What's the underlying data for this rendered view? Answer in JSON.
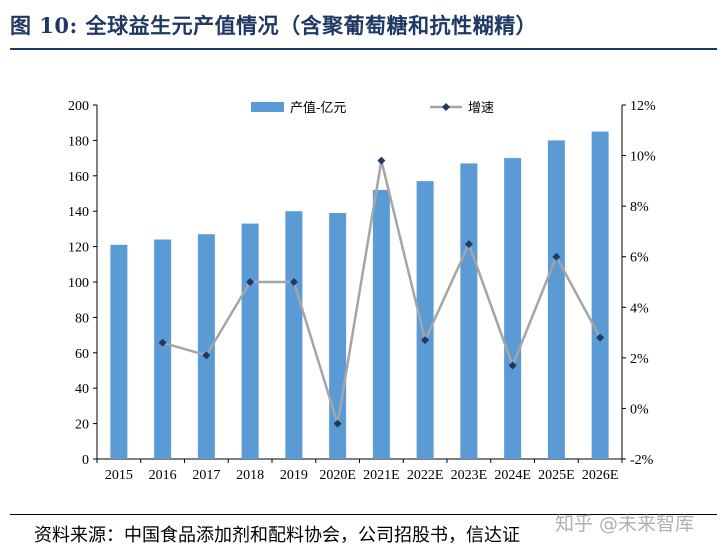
{
  "title": "图 10: 全球益生元产值情况（含聚葡萄糖和抗性糊精）",
  "source": "资料来源：中国食品添加剂和配料协会，公司招股书，信达证",
  "watermark": "知乎 @未来智库",
  "colors": {
    "bar": "#5b9bd5",
    "line": "#a5a5a5",
    "marker": "#1f3864",
    "title": "#1f3864"
  },
  "chart_data": {
    "type": "bar",
    "categories": [
      "2015",
      "2016",
      "2017",
      "2018",
      "2019",
      "2020E",
      "2021E",
      "2022E",
      "2023E",
      "2024E",
      "2025E",
      "2026E"
    ],
    "series": [
      {
        "name": "产值-亿元",
        "type": "bar",
        "axis": "left",
        "values": [
          121,
          124,
          127,
          133,
          140,
          139,
          152,
          157,
          167,
          170,
          180,
          185
        ]
      },
      {
        "name": "增速",
        "type": "line",
        "axis": "right",
        "values": [
          null,
          2.6,
          2.1,
          5.0,
          5.0,
          -0.6,
          9.8,
          2.7,
          6.5,
          1.7,
          6.0,
          2.8
        ]
      }
    ],
    "ylim": [
      0,
      200
    ],
    "yticks": [
      "0",
      "20",
      "40",
      "60",
      "80",
      "100",
      "120",
      "140",
      "160",
      "180",
      "200"
    ],
    "y2lim": [
      -2,
      12
    ],
    "y2ticks": [
      "-2%",
      "0%",
      "2%",
      "4%",
      "6%",
      "8%",
      "10%",
      "12%"
    ],
    "legend_position": "top-center",
    "grid": false
  }
}
